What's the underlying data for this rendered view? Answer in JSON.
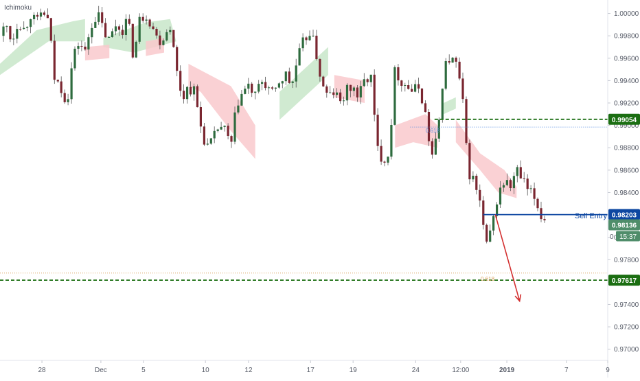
{
  "indicator_label": "Ichimoku",
  "colors": {
    "bull_body": "#2e6b3e",
    "bear_body": "#7a2630",
    "wick": "#555555",
    "cloud_bull": "#c8e6c9",
    "cloud_bear": "#f9c9cc",
    "res_line": "#1b6e12",
    "sell_line": "#0d47a1",
    "arrow": "#d32f2f",
    "fib_blue": "#5b8ee0",
    "fib_orange": "#d9a15a",
    "price_tag": "#4f8d6a",
    "grid_border": "#e0e3eb",
    "axis_text": "#555a66"
  },
  "labels": {
    "sell_entry": "Sell Entry",
    "fib_top": "0.618",
    "fib_bottom": "0.618"
  },
  "tags": {
    "resistance": "0.99054",
    "sell": "0.98203",
    "current": "0.98136",
    "timer": "15:37",
    "support": "0.97617",
    "partial": "0"
  },
  "chart_data": {
    "type": "candlestick",
    "title": "",
    "indicator": "Ichimoku",
    "y_range": [
      0.969,
      1.0012
    ],
    "x_range": [
      0,
      100
    ],
    "y_ticks": [
      "1.00000",
      "0.99800",
      "0.99600",
      "0.99400",
      "0.99200",
      "0.99000",
      "0.98800",
      "0.98600",
      "0.98400",
      "0.98200",
      "0.98000",
      "0.97800",
      "0.97600",
      "0.97400",
      "0.97200",
      "0.97000"
    ],
    "y_tick_values": [
      1.0,
      0.998,
      0.996,
      0.994,
      0.992,
      0.99,
      0.988,
      0.986,
      0.984,
      0.982,
      0.98,
      0.978,
      0.976,
      0.974,
      0.972,
      0.97
    ],
    "x_ticks": [
      {
        "label": "28",
        "x": 6.9
      },
      {
        "label": "Dec",
        "x": 16.6
      },
      {
        "label": "5",
        "x": 23.6
      },
      {
        "label": "10",
        "x": 33.8
      },
      {
        "label": "12",
        "x": 40.9
      },
      {
        "label": "17",
        "x": 51.1
      },
      {
        "label": "19",
        "x": 58.1
      },
      {
        "label": "24",
        "x": 68.4
      },
      {
        "label": "12:00",
        "x": 75.8
      },
      {
        "label": "2019",
        "x": 83.4
      },
      {
        "label": "7",
        "x": 93.2
      },
      {
        "label": "9",
        "x": 100.0
      }
    ],
    "close_path": [
      [
        0,
        0.998
      ],
      [
        1,
        0.999
      ],
      [
        2,
        0.9975
      ],
      [
        3,
        0.9995
      ],
      [
        4,
        0.9985
      ],
      [
        5,
        1.0
      ],
      [
        6,
        0.999
      ],
      [
        7,
        1.0003
      ],
      [
        8,
        0.9992
      ],
      [
        9,
        0.994
      ],
      [
        10,
        0.9935
      ],
      [
        11,
        0.992
      ],
      [
        12,
        0.996
      ],
      [
        13,
        0.9975
      ],
      [
        14,
        0.9965
      ],
      [
        15,
        0.999
      ],
      [
        16,
        1.0
      ],
      [
        17,
        0.9985
      ],
      [
        18,
        0.9975
      ],
      [
        19,
        0.999
      ],
      [
        20,
        0.9985
      ],
      [
        21,
        0.9995
      ],
      [
        22,
        0.996
      ],
      [
        23,
        0.9995
      ],
      [
        24,
        1.0
      ],
      [
        25,
        0.999
      ],
      [
        26,
        0.9975
      ],
      [
        27,
        0.998
      ],
      [
        28,
        0.999
      ],
      [
        29,
        0.995
      ],
      [
        30,
        0.9925
      ],
      [
        31,
        0.9935
      ],
      [
        32,
        0.993
      ],
      [
        33,
        0.99
      ],
      [
        34,
        0.988
      ],
      [
        35,
        0.9885
      ],
      [
        36,
        0.99
      ],
      [
        37,
        0.9895
      ],
      [
        38,
        0.988
      ],
      [
        39,
        0.992
      ],
      [
        40,
        0.993
      ],
      [
        41,
        0.9935
      ],
      [
        42,
        0.9925
      ],
      [
        43,
        0.994
      ],
      [
        44,
        0.9935
      ],
      [
        45,
        0.9925
      ],
      [
        46,
        0.994
      ],
      [
        47,
        0.9945
      ],
      [
        48,
        0.9935
      ],
      [
        49,
        0.996
      ],
      [
        50,
        0.9975
      ],
      [
        51,
        0.9985
      ],
      [
        52,
        0.9965
      ],
      [
        53,
        0.9935
      ],
      [
        54,
        0.9925
      ],
      [
        55,
        0.993
      ],
      [
        56,
        0.992
      ],
      [
        57,
        0.993
      ],
      [
        58,
        0.9935
      ],
      [
        59,
        0.9925
      ],
      [
        60,
        0.994
      ],
      [
        61,
        0.9945
      ],
      [
        62,
        0.988
      ],
      [
        63,
        0.987
      ],
      [
        64,
        0.9875
      ],
      [
        65,
        0.995
      ],
      [
        66,
        0.994
      ],
      [
        67,
        0.9935
      ],
      [
        68,
        0.993
      ],
      [
        69,
        0.9935
      ],
      [
        70,
        0.991
      ],
      [
        71,
        0.987
      ],
      [
        72,
        0.989
      ],
      [
        73,
        0.995
      ],
      [
        74,
        0.996
      ],
      [
        75,
        0.9955
      ],
      [
        76,
        0.993
      ],
      [
        77,
        0.986
      ],
      [
        78,
        0.985
      ],
      [
        79,
        0.983
      ],
      [
        80,
        0.979
      ],
      [
        81,
        0.981
      ],
      [
        82,
        0.984
      ],
      [
        83,
        0.985
      ],
      [
        84,
        0.9845
      ],
      [
        85,
        0.986
      ],
      [
        86,
        0.985
      ],
      [
        87,
        0.984
      ],
      [
        88,
        0.9835
      ],
      [
        89,
        0.982
      ],
      [
        90,
        0.9814
      ]
    ],
    "cloud_bull_polygons": [
      [
        [
          0,
          0.9955
        ],
        [
          6,
          0.9985
        ],
        [
          12,
          0.9993
        ],
        [
          14,
          0.9995
        ],
        [
          14,
          0.9975
        ],
        [
          8,
          0.9975
        ],
        [
          0,
          0.9945
        ]
      ],
      [
        [
          17,
          0.9978
        ],
        [
          24,
          0.9992
        ],
        [
          28,
          0.9995
        ],
        [
          29,
          0.9975
        ],
        [
          22,
          0.9965
        ],
        [
          17,
          0.997
        ]
      ],
      [
        [
          46,
          0.993
        ],
        [
          50,
          0.995
        ],
        [
          54,
          0.997
        ],
        [
          54,
          0.9945
        ],
        [
          50,
          0.9925
        ],
        [
          46,
          0.9905
        ]
      ],
      [
        [
          73,
          0.992
        ],
        [
          75,
          0.9925
        ],
        [
          75,
          0.9915
        ],
        [
          73,
          0.991
        ]
      ]
    ],
    "cloud_bear_polygons": [
      [
        [
          14,
          0.997
        ],
        [
          18,
          0.9972
        ],
        [
          18,
          0.996
        ],
        [
          14,
          0.9958
        ]
      ],
      [
        [
          24,
          0.9975
        ],
        [
          27,
          0.9978
        ],
        [
          27,
          0.9965
        ],
        [
          24,
          0.9962
        ]
      ],
      [
        [
          31,
          0.9955
        ],
        [
          38,
          0.9935
        ],
        [
          42,
          0.99
        ],
        [
          42,
          0.987
        ],
        [
          38,
          0.9895
        ],
        [
          33,
          0.993
        ],
        [
          31,
          0.9935
        ]
      ],
      [
        [
          55,
          0.9945
        ],
        [
          60,
          0.994
        ],
        [
          60,
          0.992
        ],
        [
          55,
          0.9925
        ]
      ],
      [
        [
          65,
          0.99
        ],
        [
          70,
          0.991
        ],
        [
          72,
          0.99
        ],
        [
          72,
          0.988
        ],
        [
          68,
          0.9885
        ],
        [
          65,
          0.988
        ]
      ],
      [
        [
          75,
          0.9905
        ],
        [
          79,
          0.9875
        ],
        [
          83,
          0.986
        ],
        [
          85,
          0.9845
        ],
        [
          85,
          0.9835
        ],
        [
          82,
          0.984
        ],
        [
          79,
          0.986
        ],
        [
          75,
          0.9885
        ]
      ]
    ],
    "levels": [
      {
        "label": "0.99054",
        "y": 0.99054,
        "style": "dashed-green",
        "x_start": 71.5
      },
      {
        "label": "0.97617",
        "y": 0.97617,
        "style": "dashed-green",
        "x_start": 0
      },
      {
        "label": "0.98203",
        "y": 0.98203,
        "style": "solid-blue",
        "x_start": 79.5
      },
      {
        "label": "0.618",
        "y": 0.98985,
        "style": "dotted-blue",
        "x_start": 67.5
      },
      {
        "label": "0.618",
        "y": 0.9768,
        "style": "dotted-orange",
        "x_start": 0
      }
    ],
    "arrow": {
      "from": [
        81.5,
        0.98203
      ],
      "to": [
        85.5,
        0.9743
      ]
    },
    "current_price": 0.98136
  }
}
